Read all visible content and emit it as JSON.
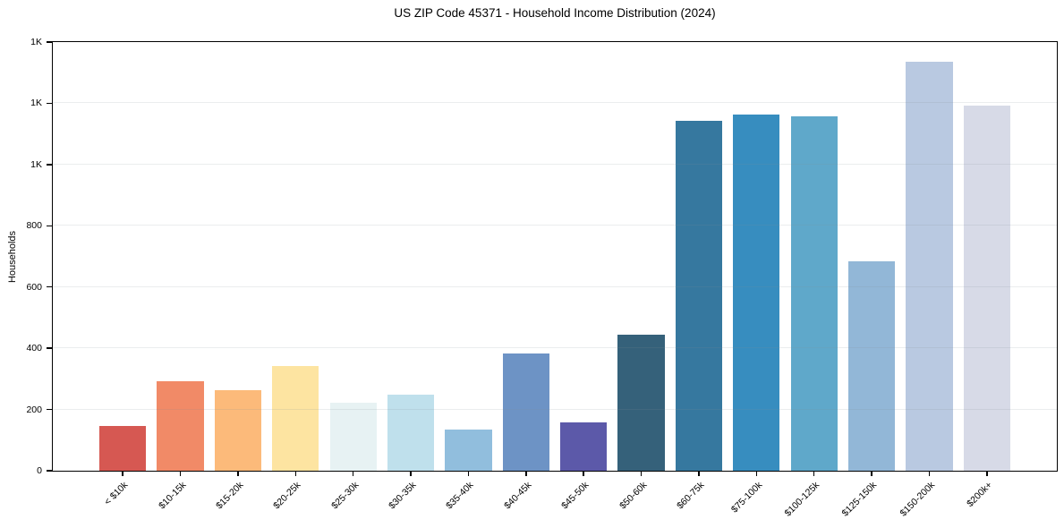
{
  "title": "US ZIP Code 45371 - Household Income Distribution (2024)",
  "chart_data": {
    "type": "bar",
    "title": "US ZIP Code 45371 - Household Income Distribution (2024)",
    "xlabel": "",
    "ylabel": "Households",
    "categories": [
      "< $10k",
      "$10-15k",
      "$15-20k",
      "$20-25k",
      "$25-30k",
      "$30-35k",
      "$35-40k",
      "$40-45k",
      "$45-50k",
      "$50-60k",
      "$60-75k",
      "$75-100k",
      "$100-125k",
      "$125-150k",
      "$150-200k",
      "$200k+"
    ],
    "values": [
      145,
      291,
      263,
      341,
      222,
      248,
      134,
      384,
      157,
      444,
      1143,
      1164,
      1156,
      683,
      1336,
      1192
    ],
    "bar_colors": [
      "#d65852",
      "#f18a67",
      "#fcba7a",
      "#fde4a1",
      "#e7f2f3",
      "#bfe0ec",
      "#91bedd",
      "#6d93c5",
      "#5c59a9",
      "#35617a",
      "#36789f",
      "#378dbf",
      "#5fa8ca",
      "#92b7d7",
      "#b9c9e1",
      "#d7dae7"
    ],
    "ylim": [
      0,
      1400
    ],
    "yticks": [
      {
        "value": 0,
        "label": "0"
      },
      {
        "value": 200,
        "label": "200"
      },
      {
        "value": 400,
        "label": "400"
      },
      {
        "value": 600,
        "label": "600"
      },
      {
        "value": 800,
        "label": "800"
      },
      {
        "value": 1000,
        "label": "1K"
      },
      {
        "value": 1200,
        "label": "1K"
      },
      {
        "value": 1400,
        "label": "1K"
      }
    ],
    "grid": "horizontal",
    "legend": "none",
    "x_label_rotation_deg": 45,
    "background_color": "#ffffff",
    "spine_color": "#000000",
    "gridline_color": "#ebebeb"
  }
}
